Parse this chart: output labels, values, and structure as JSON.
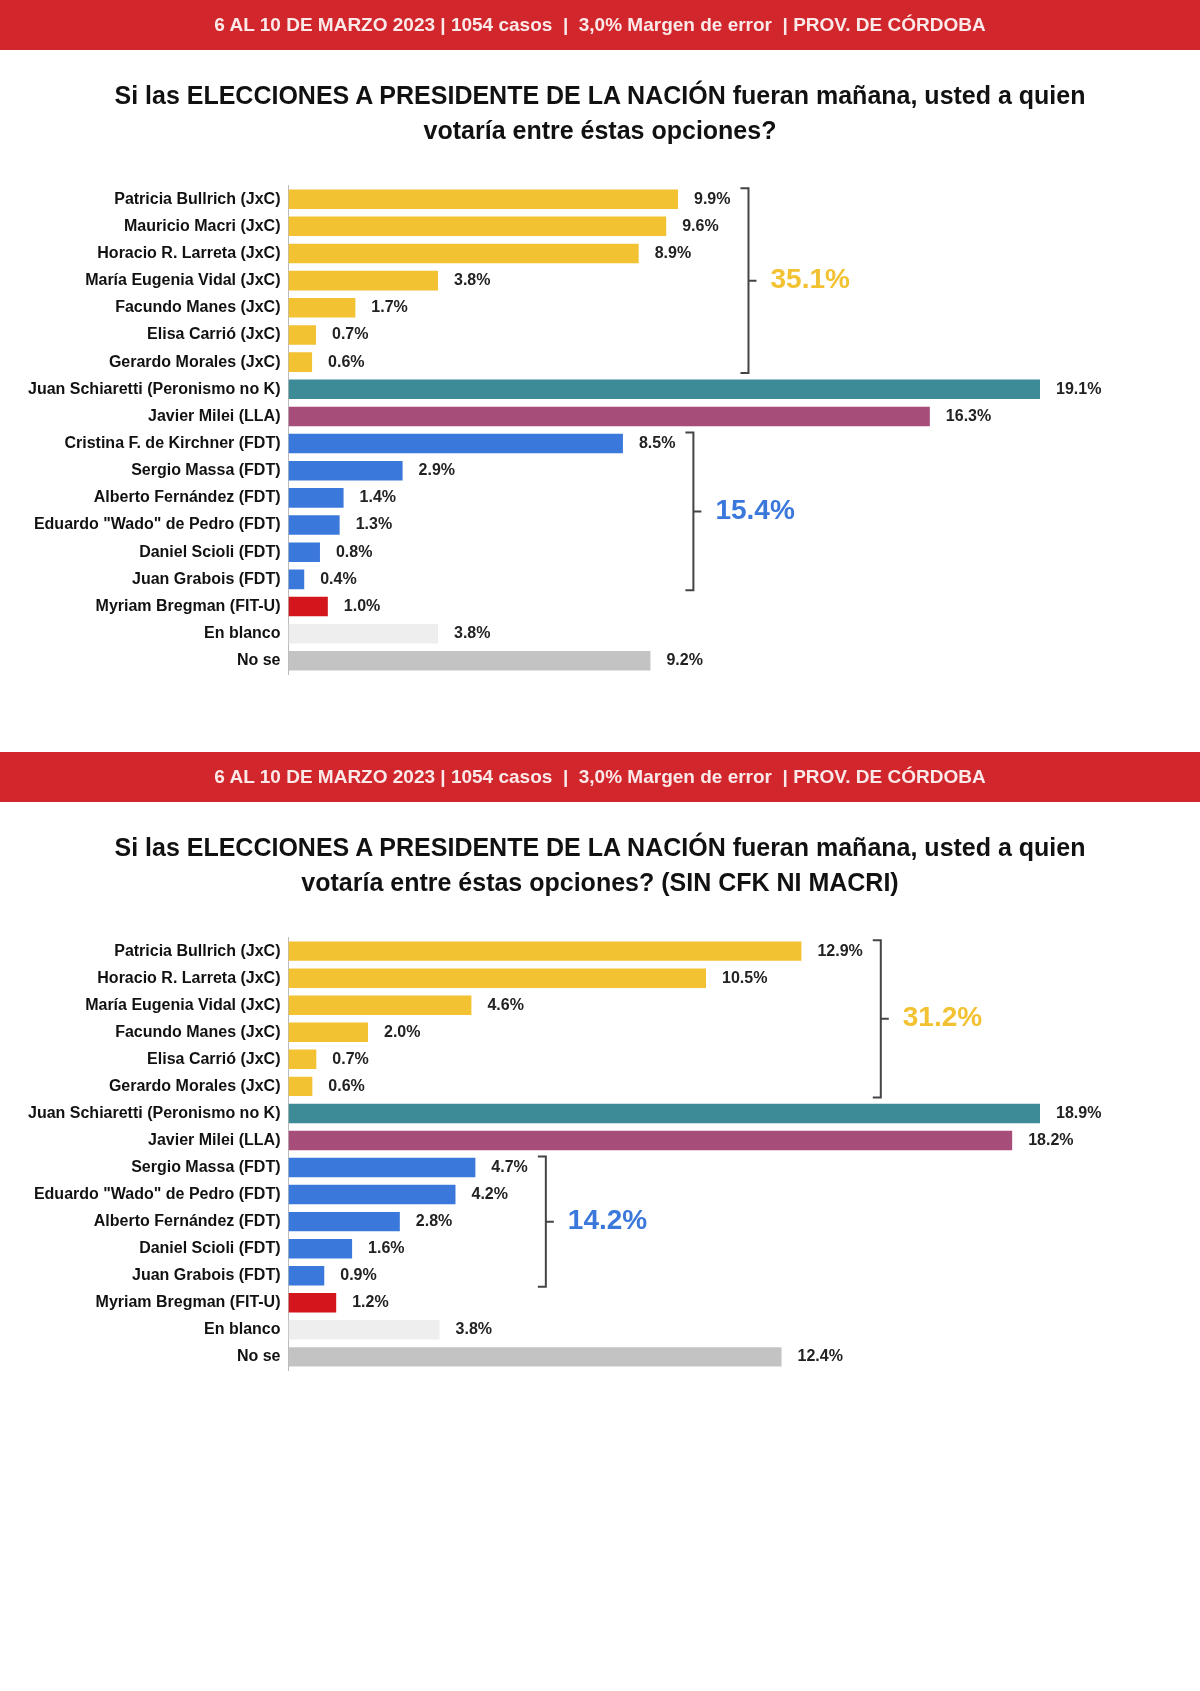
{
  "chart_data": [
    {
      "type": "bar",
      "orientation": "horizontal",
      "subtitle": "6 AL 10 DE MARZO 2023 | 1054 casos  |  3,0% Margen de error  | PROV. DE CÓRDOBA",
      "title": "Si las ELECCIONES A PRESIDENTE DE LA NACIÓN fueran mañana, usted a quien votaría entre éstas opciones?",
      "categories": [
        "Patricia Bullrich (JxC)",
        "Mauricio Macri (JxC)",
        "Horacio R. Larreta (JxC)",
        "María Eugenia Vidal (JxC)",
        "Facundo Manes (JxC)",
        "Elisa Carrió (JxC)",
        "Gerardo Morales (JxC)",
        "Juan Schiaretti (Peronismo no K)",
        "Javier Milei (LLA)",
        "Cristina F. de Kirchner (FDT)",
        "Sergio Massa (FDT)",
        "Alberto Fernández (FDT)",
        "Eduardo \"Wado\" de Pedro (FDT)",
        "Daniel Scioli (FDT)",
        "Juan Grabois (FDT)",
        "Myriam Bregman (FIT-U)",
        "En blanco",
        "No se"
      ],
      "values": [
        9.9,
        9.6,
        8.9,
        3.8,
        1.7,
        0.7,
        0.6,
        19.1,
        16.3,
        8.5,
        2.9,
        1.4,
        1.3,
        0.8,
        0.4,
        1.0,
        3.8,
        9.2
      ],
      "value_labels": [
        "9.9%",
        "9.6%",
        "8.9%",
        "3.8%",
        "1.7%",
        "0.7%",
        "0.6%",
        "19.1%",
        "16.3%",
        "8.5%",
        "2.9%",
        "1.4%",
        "1.3%",
        "0.8%",
        "0.4%",
        "1.0%",
        "3.8%",
        "9.2%"
      ],
      "colors": [
        "#f2c232",
        "#f2c232",
        "#f2c232",
        "#f2c232",
        "#f2c232",
        "#f2c232",
        "#f2c232",
        "#3d8b97",
        "#a64d7a",
        "#3b78db",
        "#3b78db",
        "#3b78db",
        "#3b78db",
        "#3b78db",
        "#3b78db",
        "#d2161c",
        "#eeeeee",
        "#c3c3c3"
      ],
      "annotations": [
        "35.1%",
        "15.4%"
      ],
      "tick_labels": "y",
      "grid": false,
      "legend": false
    },
    {
      "type": "bar",
      "orientation": "horizontal",
      "subtitle": "6 AL 10 DE MARZO 2023 | 1054 casos  |  3,0% Margen de error  | PROV. DE CÓRDOBA",
      "title": "Si las ELECCIONES A PRESIDENTE DE LA NACIÓN fueran mañana, usted a quien votaría entre éstas opciones? (SIN CFK NI MACRI)",
      "categories": [
        "Patricia Bullrich (JxC)",
        "Horacio R. Larreta (JxC)",
        "María Eugenia Vidal (JxC)",
        "Facundo Manes (JxC)",
        "Elisa Carrió (JxC)",
        "Gerardo Morales (JxC)",
        "Juan Schiaretti (Peronismo no K)",
        "Javier Milei (LLA)",
        "Sergio Massa (FDT)",
        "Eduardo \"Wado\" de Pedro (FDT)",
        "Alberto Fernández (FDT)",
        "Daniel Scioli (FDT)",
        "Juan Grabois (FDT)",
        "Myriam Bregman (FIT-U)",
        "En blanco",
        "No se"
      ],
      "values": [
        12.9,
        10.5,
        4.6,
        2.0,
        0.7,
        0.6,
        18.9,
        18.2,
        4.7,
        4.2,
        2.8,
        1.6,
        0.9,
        1.2,
        3.8,
        12.4
      ],
      "value_labels": [
        "12.9%",
        "10.5%",
        "4.6%",
        "2.0%",
        "0.7%",
        "0.6%",
        "18.9%",
        "18.2%",
        "4.7%",
        "4.2%",
        "2.8%",
        "1.6%",
        "0.9%",
        "1.2%",
        "3.8%",
        "12.4%"
      ],
      "colors": [
        "#f2c232",
        "#f2c232",
        "#f2c232",
        "#f2c232",
        "#f2c232",
        "#f2c232",
        "#3d8b97",
        "#a64d7a",
        "#3b78db",
        "#3b78db",
        "#3b78db",
        "#3b78db",
        "#3b78db",
        "#d2161c",
        "#eeeeee",
        "#c3c3c3"
      ],
      "annotations": [
        "31.2%",
        "14.2%"
      ],
      "tick_labels": "y",
      "grid": false,
      "legend": false
    }
  ]
}
